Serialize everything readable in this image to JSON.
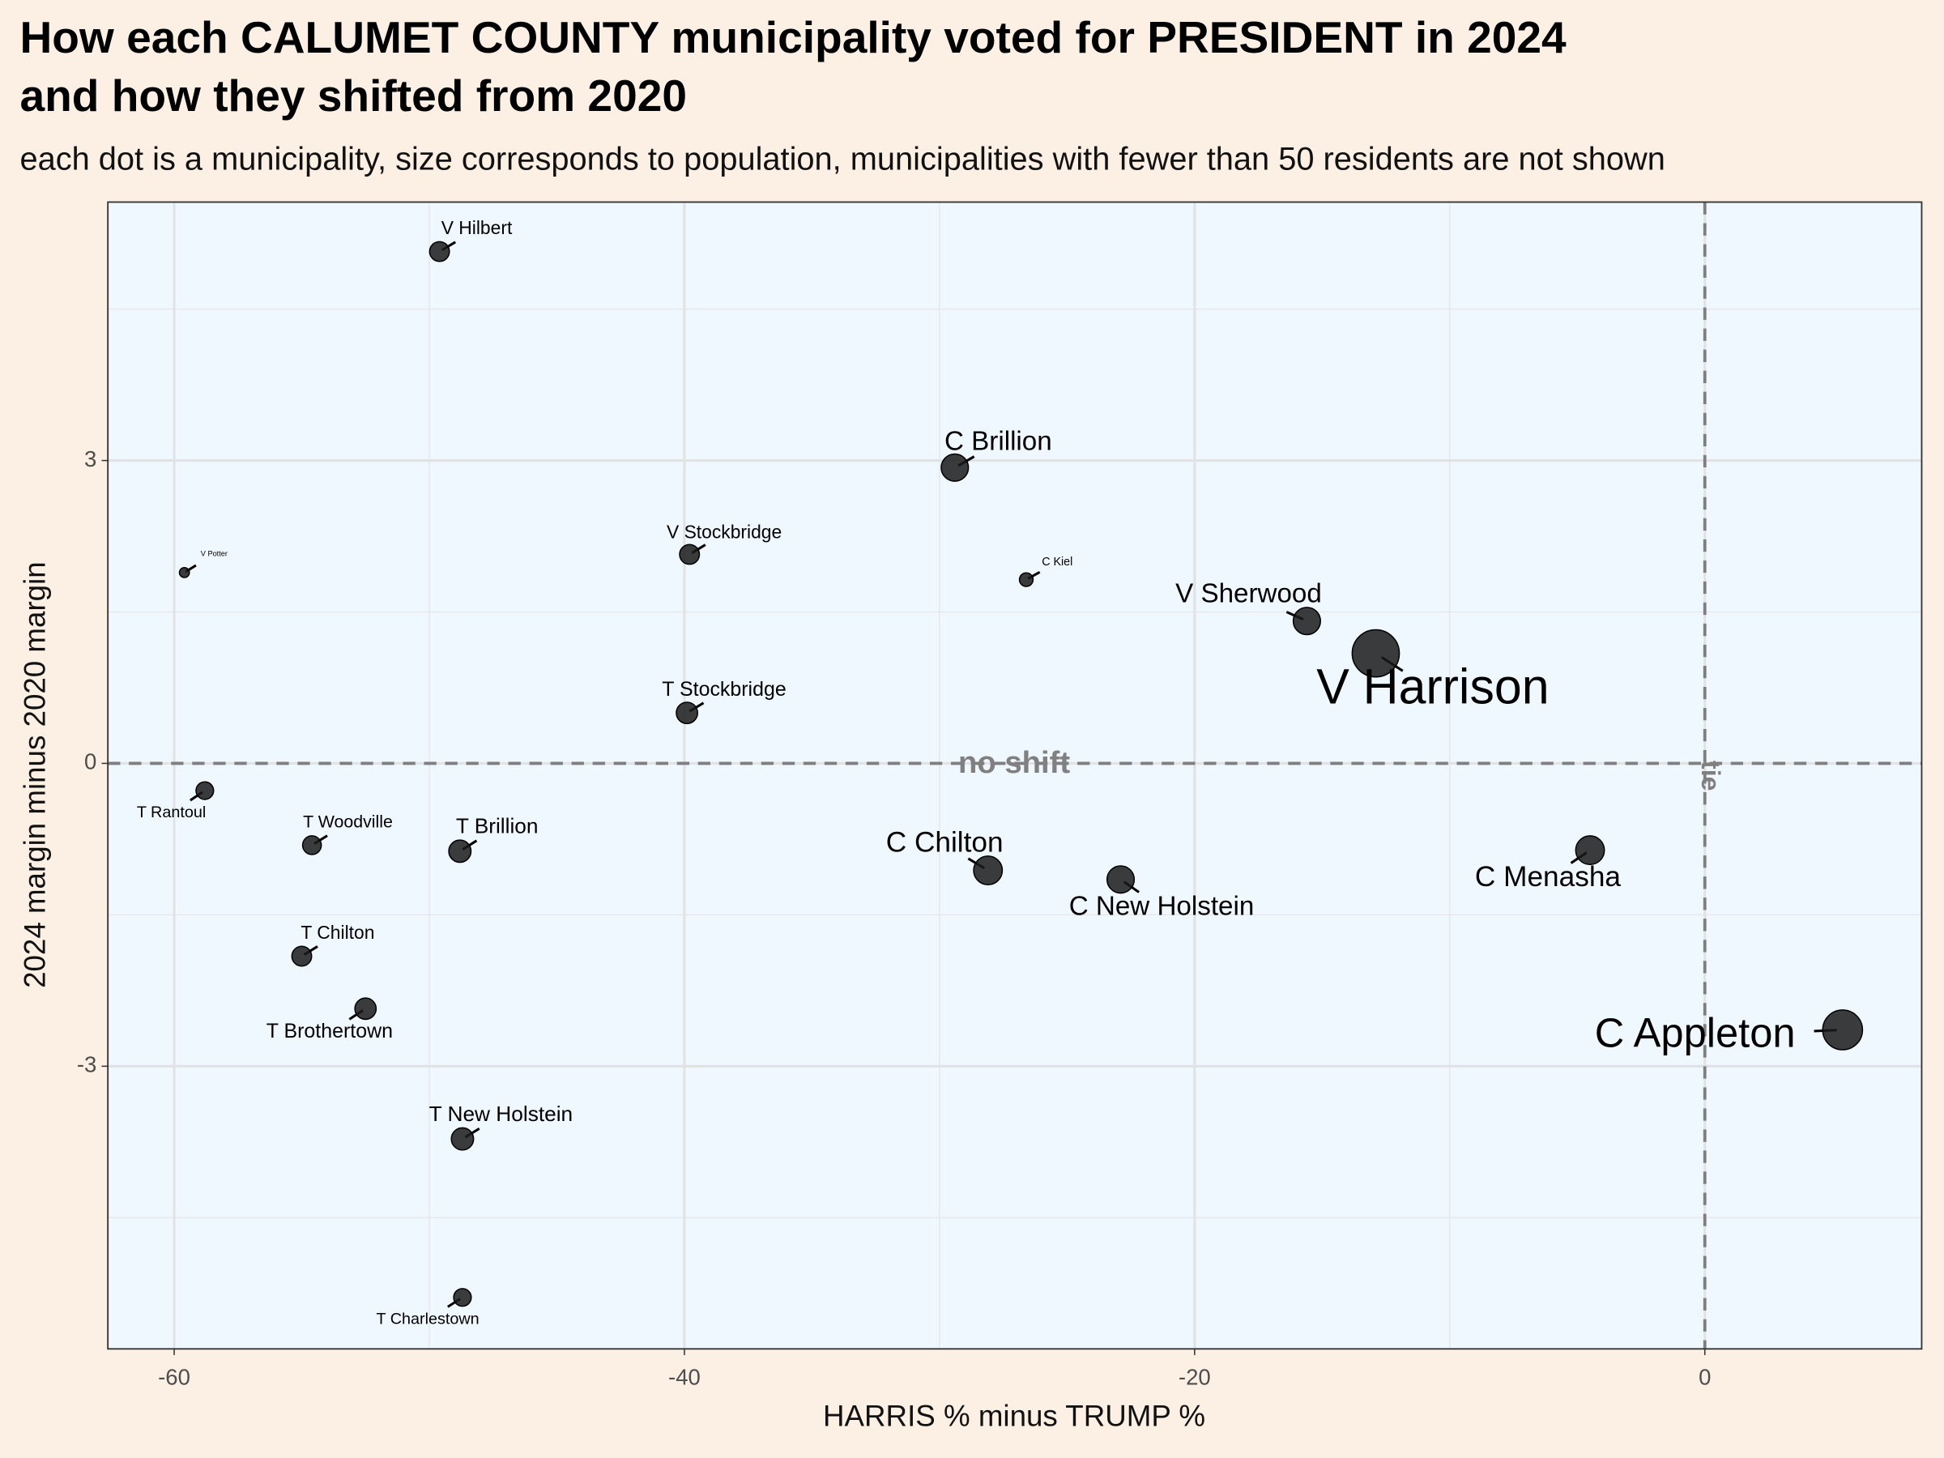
{
  "chart_data": {
    "type": "scatter",
    "title": [
      "How each CALUMET COUNTY municipality voted for PRESIDENT in 2024",
      "and how they shifted from 2020"
    ],
    "subtitle": "each dot is a municipality, size corresponds to population, municipalities with fewer than 50 residents are not shown",
    "x_label": "HARRIS % minus TRUMP %",
    "y_label": "2024 margin minus 2020 margin",
    "annotations": {
      "y_line": "no shift",
      "x_line": "tie"
    },
    "reference_lines": {
      "x": 0,
      "y": 0
    },
    "xlim": [
      -62.6,
      8.5
    ],
    "ylim": [
      -5.8,
      5.56
    ],
    "xticks": [
      -60,
      -40,
      -20,
      0
    ],
    "yticks": [
      -3,
      0,
      3
    ],
    "x_minor_grid": [
      -50,
      -30,
      -10
    ],
    "y_minor_grid": [
      -4.5,
      -1.5,
      1.5,
      4.5
    ],
    "grid": true,
    "color": "#1a1a1a",
    "labels": [
      "V Hilbert",
      "C Brillion",
      "V Stockbridge",
      "V Potter",
      "C Kiel",
      "V Sherwood",
      "V Harrison",
      "T Stockbridge",
      "T Rantoul",
      "T Woodville",
      "T Brillion",
      "C Chilton",
      "C New Holstein",
      "C Menasha",
      "T Chilton",
      "T Brothertown",
      "C Appleton",
      "T New Holstein",
      "T Charlestown"
    ],
    "x": [
      -49.6,
      -29.4,
      -39.8,
      -59.6,
      -26.6,
      -15.6,
      -12.9,
      -39.9,
      -58.8,
      -54.6,
      -48.8,
      -28.1,
      -22.9,
      -4.5,
      -55.0,
      -52.5,
      5.4,
      -48.7,
      -48.7
    ],
    "y": [
      5.07,
      2.93,
      2.07,
      1.89,
      1.82,
      1.41,
      1.09,
      0.5,
      -0.27,
      -0.81,
      -0.87,
      -1.06,
      -1.15,
      -0.86,
      -1.91,
      -2.43,
      -2.64,
      -3.72,
      -5.29
    ],
    "sizes": [
      1900,
      3600,
      1900,
      480,
      900,
      3600,
      10800,
      2200,
      1500,
      1700,
      2400,
      4000,
      3600,
      4000,
      1900,
      2200,
      7700,
      2400,
      1500
    ]
  }
}
